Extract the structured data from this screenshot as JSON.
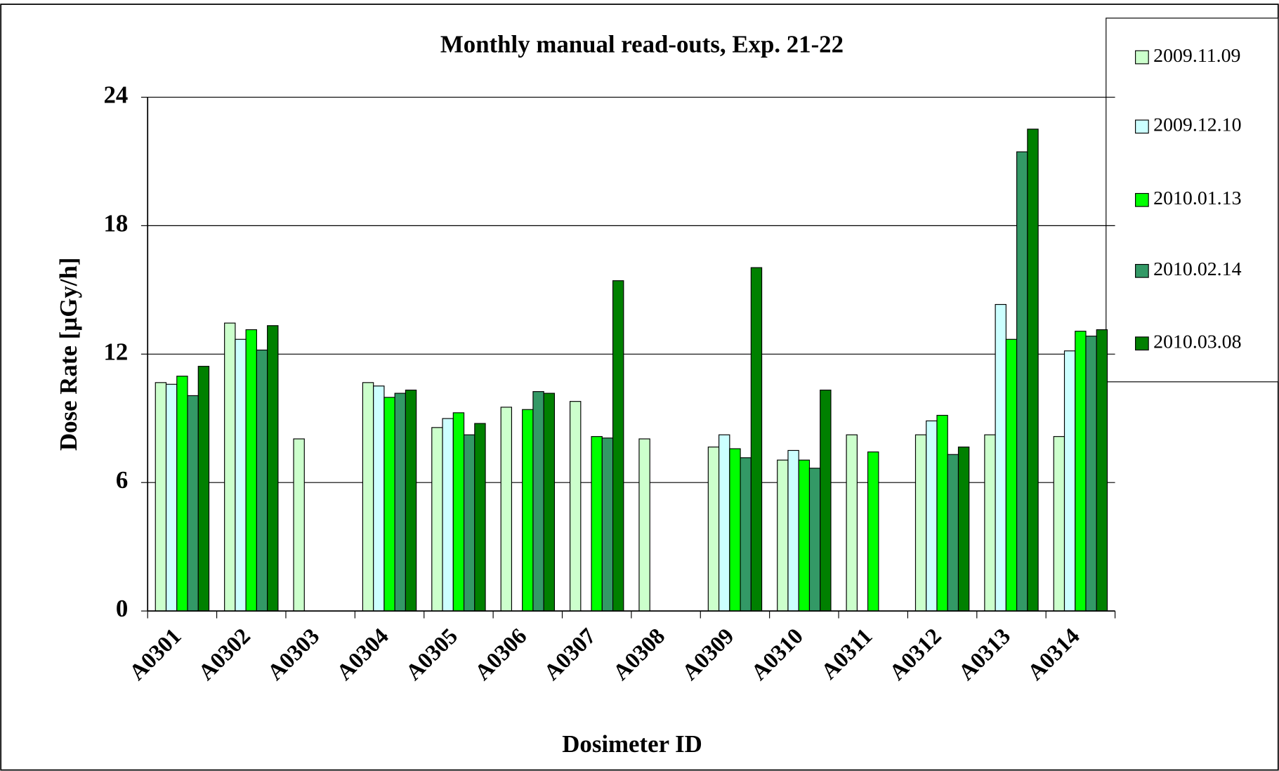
{
  "chart_data": {
    "type": "bar",
    "title": "Monthly manual read-outs, Exp. 21-22",
    "x_label": "Dosimeter ID",
    "y_label": "Dose Rate [µGy/h]",
    "categories": [
      "A0301",
      "A0302",
      "A0303",
      "A0304",
      "A0305",
      "A0306",
      "A0307",
      "A0308",
      "A0309",
      "A0310",
      "A0311",
      "A0312",
      "A0313",
      "A0314"
    ],
    "series": [
      {
        "name": "2009.11.09",
        "color": "#ccffcc",
        "values": [
          10.67,
          13.45,
          8.04,
          10.67,
          8.57,
          9.52,
          9.79,
          8.04,
          7.66,
          7.05,
          8.23,
          8.23,
          8.23,
          8.15
        ]
      },
      {
        "name": "2009.12.10",
        "color": "#ccffff",
        "values": [
          10.59,
          12.69,
          null,
          10.51,
          8.99,
          null,
          null,
          null,
          8.23,
          7.5,
          null,
          8.88,
          14.32,
          12.15
        ]
      },
      {
        "name": "2010.01.13",
        "color": "#00ff00",
        "values": [
          10.97,
          13.14,
          null,
          9.98,
          9.26,
          9.41,
          8.15,
          null,
          7.58,
          7.05,
          7.43,
          9.14,
          12.69,
          13.07
        ]
      },
      {
        "name": "2010.02.14",
        "color": "#339966",
        "values": [
          10.06,
          12.19,
          null,
          10.17,
          8.23,
          10.25,
          8.08,
          null,
          7.16,
          6.67,
          null,
          7.31,
          21.45,
          12.84
        ]
      },
      {
        "name": "2010.03.08",
        "color": "#008000",
        "values": [
          11.43,
          13.33,
          null,
          10.32,
          8.76,
          10.17,
          15.43,
          null,
          16.04,
          10.32,
          null,
          7.66,
          22.51,
          13.14
        ]
      }
    ],
    "ylim": [
      0,
      24
    ],
    "yticks": [
      0,
      6,
      12,
      18,
      24
    ],
    "grid": true,
    "legend": "right"
  }
}
